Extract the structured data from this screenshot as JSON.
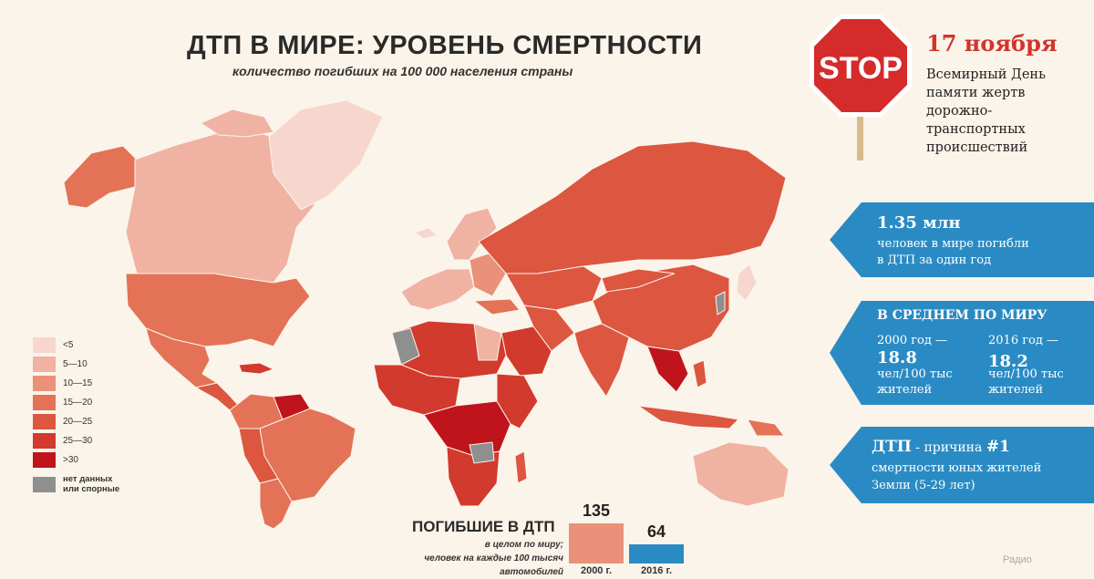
{
  "header": {
    "title": "ДТП В МИРЕ: УРОВЕНЬ СМЕРТНОСТИ",
    "subtitle": "количество погибших на 100 000 населения страны"
  },
  "legend": [
    {
      "label": "<5",
      "color": "#f7d6cd"
    },
    {
      "label": "5—10",
      "color": "#f0b2a2"
    },
    {
      "label": "10—15",
      "color": "#ea9179"
    },
    {
      "label": "15—20",
      "color": "#e47256"
    },
    {
      "label": "20—25",
      "color": "#dc5640"
    },
    {
      "label": "25—30",
      "color": "#d13a2c"
    },
    {
      "label": ">30",
      "color": "#c0141c"
    }
  ],
  "legend_no_data": {
    "line1": "нет данных",
    "line2": "или спорные",
    "color": "#8f8f8f"
  },
  "stop_sign": {
    "text": "STOP",
    "color": "#d52b2b"
  },
  "memorial": {
    "date": "17 ноября",
    "lines": [
      "Всемирный День",
      "памяти жертв",
      "дорожно-",
      "транспортных",
      "происшествий"
    ]
  },
  "panel_total": {
    "value": "1.35 млн",
    "line1": "человек в мире погибли",
    "line2": "в ДТП за один год"
  },
  "panel_average": {
    "heading": "В СРЕДНЕМ ПО МИРУ",
    "left": {
      "year": "2000 год —",
      "value": "18.8",
      "unit1": "чел/100 тыс",
      "unit2": "жителей"
    },
    "right": {
      "year": "2016 год —",
      "value": "18.2",
      "unit1": "чел/100 тыс",
      "unit2": "жителей"
    }
  },
  "panel_cause": {
    "lead": "ДТП",
    "rest": " - причина ",
    "rank": "#1",
    "line2": "смертности юных жителей",
    "line3": "Земли (5-29 лет)"
  },
  "deaths": {
    "title": "ПОГИБШИЕ В ДТП",
    "sub1": "в целом по миру;",
    "sub2": "человек на каждые 100 тысяч",
    "sub3": "автомобилей"
  },
  "chart_data": {
    "type": "bar",
    "categories": [
      "2000 г.",
      "2016 г."
    ],
    "values": [
      135,
      64
    ],
    "colors": [
      "#ea9179",
      "#2a8bc4"
    ]
  },
  "brand": {
    "text": "Радио"
  }
}
